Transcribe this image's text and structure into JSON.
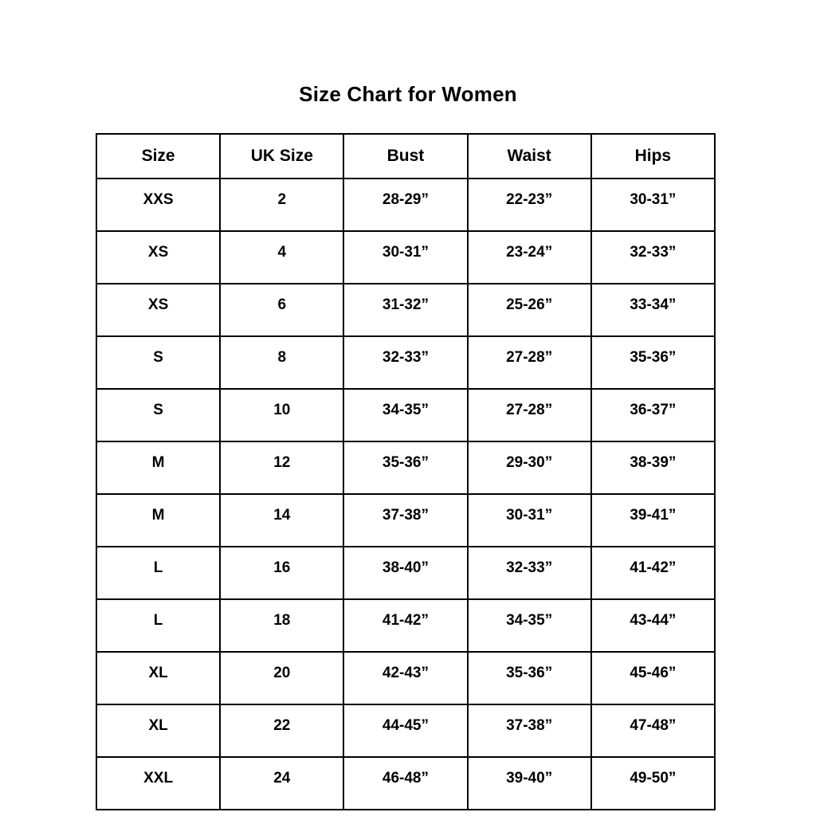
{
  "page": {
    "title": "Size Chart for Women"
  },
  "colors": {
    "text": "#000000",
    "border": "#000000",
    "background": "#ffffff"
  },
  "table": {
    "headers": [
      "Size",
      "UK Size",
      "Bust",
      "Waist",
      "Hips"
    ],
    "rows": [
      [
        "XXS",
        "2",
        "28-29”",
        "22-23”",
        "30-31”"
      ],
      [
        "XS",
        "4",
        "30-31”",
        "23-24”",
        "32-33”"
      ],
      [
        "XS",
        "6",
        "31-32”",
        "25-26”",
        "33-34”"
      ],
      [
        "S",
        "8",
        "32-33”",
        "27-28”",
        "35-36”"
      ],
      [
        "S",
        "10",
        "34-35”",
        "27-28”",
        "36-37”"
      ],
      [
        "M",
        "12",
        "35-36”",
        "29-30”",
        "38-39”"
      ],
      [
        "M",
        "14",
        "37-38”",
        "30-31”",
        "39-41”"
      ],
      [
        "L",
        "16",
        "38-40”",
        "32-33”",
        "41-42”"
      ],
      [
        "L",
        "18",
        "41-42”",
        "34-35”",
        "43-44”"
      ],
      [
        "XL",
        "20",
        "42-43”",
        "35-36”",
        "45-46”"
      ],
      [
        "XL",
        "22",
        "44-45”",
        "37-38”",
        "47-48”"
      ],
      [
        "XXL",
        "24",
        "46-48”",
        "39-40”",
        "49-50”"
      ]
    ]
  },
  "chart_data": {
    "type": "table",
    "title": "Size Chart for Women",
    "columns": [
      "Size",
      "UK Size",
      "Bust",
      "Waist",
      "Hips"
    ],
    "rows": [
      {
        "size": "XXS",
        "uk_size": "2",
        "bust": "28-29”",
        "waist": "22-23”",
        "hips": "30-31”"
      },
      {
        "size": "XS",
        "uk_size": "4",
        "bust": "30-31”",
        "waist": "23-24”",
        "hips": "32-33”"
      },
      {
        "size": "XS",
        "uk_size": "6",
        "bust": "31-32”",
        "waist": "25-26”",
        "hips": "33-34”"
      },
      {
        "size": "S",
        "uk_size": "8",
        "bust": "32-33”",
        "waist": "27-28”",
        "hips": "35-36”"
      },
      {
        "size": "S",
        "uk_size": "10",
        "bust": "34-35”",
        "waist": "27-28”",
        "hips": "36-37”"
      },
      {
        "size": "M",
        "uk_size": "12",
        "bust": "35-36”",
        "waist": "29-30”",
        "hips": "38-39”"
      },
      {
        "size": "M",
        "uk_size": "14",
        "bust": "37-38”",
        "waist": "30-31”",
        "hips": "39-41”"
      },
      {
        "size": "L",
        "uk_size": "16",
        "bust": "38-40”",
        "waist": "32-33”",
        "hips": "41-42”"
      },
      {
        "size": "L",
        "uk_size": "18",
        "bust": "41-42”",
        "waist": "34-35”",
        "hips": "43-44”"
      },
      {
        "size": "XL",
        "uk_size": "20",
        "bust": "42-43”",
        "waist": "35-36”",
        "hips": "45-46”"
      },
      {
        "size": "XL",
        "uk_size": "22",
        "bust": "44-45”",
        "waist": "37-38”",
        "hips": "47-48”"
      },
      {
        "size": "XXL",
        "uk_size": "24",
        "bust": "46-48”",
        "waist": "39-40”",
        "hips": "49-50”"
      }
    ]
  }
}
